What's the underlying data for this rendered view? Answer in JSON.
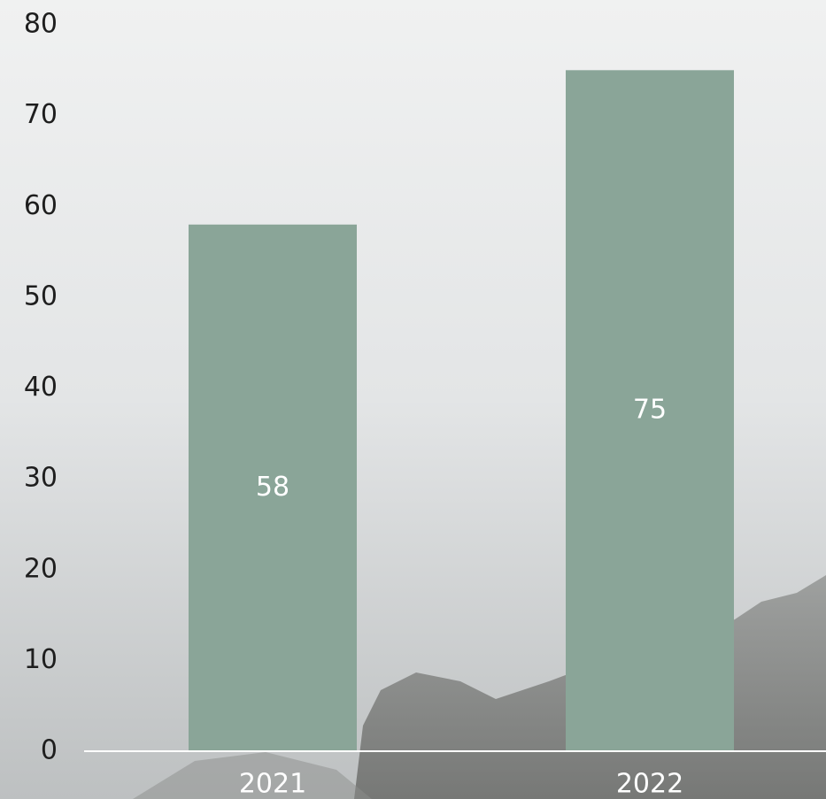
{
  "chart_data": {
    "type": "bar",
    "categories": [
      "2021",
      "2022"
    ],
    "values": [
      58,
      75
    ],
    "color": "#8aa598",
    "ylim": [
      0,
      80
    ],
    "yticks": [
      0,
      10,
      20,
      30,
      40,
      50,
      60,
      70,
      80
    ]
  }
}
